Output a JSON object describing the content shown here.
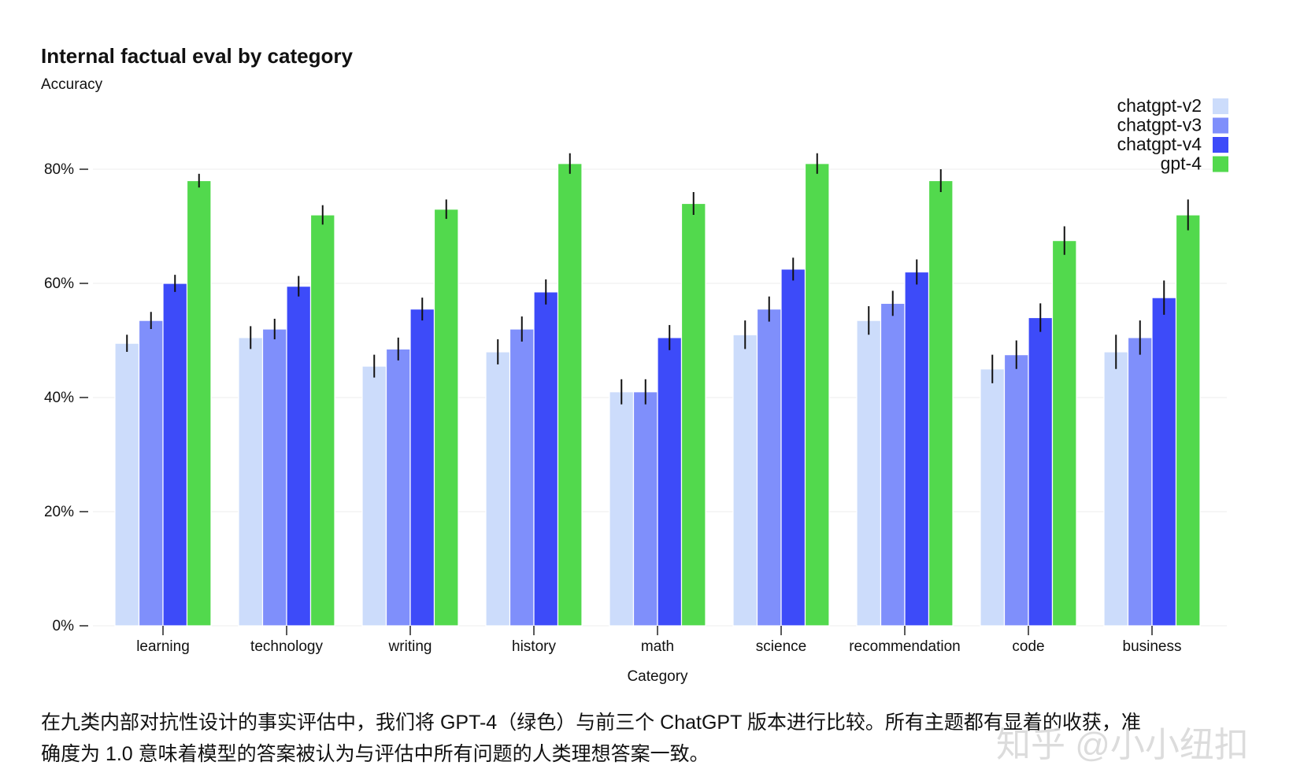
{
  "chart_data": {
    "type": "bar",
    "title": "Internal factual eval by category",
    "ylabel": "Accuracy",
    "xlabel": "Category",
    "ylim": [
      0,
      0.8
    ],
    "yticks": [
      "0%",
      "20%",
      "40%",
      "60%",
      "80%"
    ],
    "ytick_values": [
      0,
      0.2,
      0.4,
      0.6,
      0.8
    ],
    "grid": true,
    "legend_position": "top-right",
    "categories": [
      "learning",
      "technology",
      "writing",
      "history",
      "math",
      "science",
      "recommendation",
      "code",
      "business"
    ],
    "series": [
      {
        "name": "chatgpt-v2",
        "color": "#ccdcfb",
        "values": [
          0.495,
          0.505,
          0.455,
          0.48,
          0.41,
          0.51,
          0.535,
          0.45,
          0.48
        ],
        "errors": [
          0.015,
          0.02,
          0.02,
          0.022,
          0.022,
          0.025,
          0.025,
          0.025,
          0.03
        ]
      },
      {
        "name": "chatgpt-v3",
        "color": "#7f8ffb",
        "values": [
          0.535,
          0.52,
          0.485,
          0.52,
          0.41,
          0.555,
          0.565,
          0.475,
          0.505
        ],
        "errors": [
          0.015,
          0.018,
          0.02,
          0.022,
          0.022,
          0.022,
          0.022,
          0.025,
          0.03
        ]
      },
      {
        "name": "chatgpt-v4",
        "color": "#3d4bf9",
        "values": [
          0.6,
          0.595,
          0.555,
          0.585,
          0.505,
          0.625,
          0.62,
          0.54,
          0.575
        ],
        "errors": [
          0.015,
          0.018,
          0.02,
          0.022,
          0.022,
          0.02,
          0.022,
          0.025,
          0.03
        ]
      },
      {
        "name": "gpt-4",
        "color": "#52d94d",
        "values": [
          0.78,
          0.72,
          0.73,
          0.81,
          0.74,
          0.81,
          0.78,
          0.675,
          0.72
        ],
        "errors": [
          0.012,
          0.017,
          0.017,
          0.018,
          0.02,
          0.018,
          0.02,
          0.025,
          0.027
        ]
      }
    ]
  },
  "caption": {
    "line1": "在九类内部对抗性设计的事实评估中，我们将 GPT-4（绿色）与前三个 ChatGPT 版本进行比较。所有主题都有显着的收获，准",
    "line2": "确度为 1.0 意味着模型的答案被认为与评估中所有问题的人类理想答案一致。"
  },
  "watermark": "知乎 @小小纽扣"
}
